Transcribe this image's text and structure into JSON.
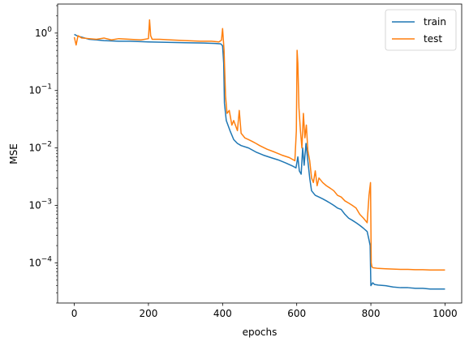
{
  "chart_data": {
    "type": "line",
    "xlabel": "epochs",
    "ylabel": "MSE",
    "xlim": [
      -45,
      1045
    ],
    "ylim": [
      2e-05,
      3.2
    ],
    "yscale": "log",
    "grid": false,
    "legend_position": "top-right",
    "x_ticks": [
      0,
      200,
      400,
      600,
      800,
      1000
    ],
    "x_tick_labels": [
      "0",
      "200",
      "400",
      "600",
      "800",
      "1000"
    ],
    "y_ticks": [
      0.0001,
      0.001,
      0.01,
      0.1,
      1
    ],
    "y_tick_labels": [
      {
        "base": "10",
        "exp": "−4"
      },
      {
        "base": "10",
        "exp": "−3"
      },
      {
        "base": "10",
        "exp": "−2"
      },
      {
        "base": "10",
        "exp": "−1"
      },
      {
        "base": "10",
        "exp": "0"
      }
    ],
    "series": [
      {
        "name": "train",
        "color": "#1f77b4",
        "x": [
          0,
          10,
          20,
          40,
          60,
          80,
          100,
          120,
          150,
          200,
          250,
          300,
          350,
          380,
          395,
          400,
          403,
          405,
          410,
          420,
          430,
          440,
          450,
          470,
          490,
          510,
          530,
          550,
          570,
          590,
          598,
          603,
          607,
          612,
          616,
          620,
          625,
          630,
          635,
          640,
          650,
          660,
          670,
          680,
          690,
          700,
          710,
          720,
          730,
          740,
          750,
          760,
          770,
          780,
          790,
          795,
          798,
          800,
          805,
          810,
          820,
          840,
          860,
          880,
          900,
          920,
          940,
          960,
          980,
          1000
        ],
        "y": [
          0.95,
          0.88,
          0.85,
          0.78,
          0.76,
          0.74,
          0.73,
          0.72,
          0.72,
          0.7,
          0.69,
          0.68,
          0.67,
          0.66,
          0.65,
          0.6,
          0.3,
          0.06,
          0.03,
          0.02,
          0.014,
          0.012,
          0.011,
          0.01,
          0.0085,
          0.0075,
          0.0068,
          0.0062,
          0.0055,
          0.0048,
          0.0045,
          0.007,
          0.004,
          0.0035,
          0.01,
          0.005,
          0.012,
          0.006,
          0.003,
          0.0018,
          0.0015,
          0.0014,
          0.0013,
          0.0012,
          0.0011,
          0.001,
          0.0009,
          0.00085,
          0.0007,
          0.0006,
          0.00055,
          0.0005,
          0.00045,
          0.0004,
          0.00035,
          0.00025,
          0.0002,
          4e-05,
          4.5e-05,
          4.2e-05,
          4.1e-05,
          4e-05,
          3.8e-05,
          3.7e-05,
          3.7e-05,
          3.6e-05,
          3.6e-05,
          3.5e-05,
          3.5e-05,
          3.5e-05
        ]
      },
      {
        "name": "test",
        "color": "#ff7f0e",
        "x": [
          0,
          5,
          10,
          20,
          40,
          60,
          80,
          100,
          120,
          150,
          180,
          200,
          203,
          206,
          210,
          230,
          260,
          300,
          340,
          370,
          390,
          397,
          400,
          404,
          408,
          412,
          418,
          425,
          430,
          440,
          445,
          450,
          460,
          470,
          480,
          490,
          500,
          520,
          540,
          560,
          580,
          595,
          599,
          601,
          603,
          606,
          610,
          614,
          618,
          622,
          626,
          630,
          635,
          640,
          645,
          650,
          655,
          660,
          670,
          680,
          690,
          700,
          710,
          720,
          730,
          740,
          750,
          760,
          770,
          780,
          790,
          795,
          799,
          801,
          803,
          806,
          820,
          840,
          860,
          880,
          900,
          920,
          940,
          960,
          980,
          1000
        ],
        "y": [
          0.85,
          0.62,
          0.9,
          0.82,
          0.8,
          0.78,
          0.82,
          0.76,
          0.8,
          0.78,
          0.76,
          0.8,
          1.7,
          0.9,
          0.78,
          0.78,
          0.76,
          0.74,
          0.72,
          0.72,
          0.7,
          0.75,
          1.2,
          0.5,
          0.08,
          0.04,
          0.045,
          0.025,
          0.03,
          0.02,
          0.045,
          0.018,
          0.015,
          0.014,
          0.013,
          0.012,
          0.011,
          0.0095,
          0.0085,
          0.0075,
          0.0068,
          0.006,
          0.02,
          0.5,
          0.3,
          0.05,
          0.02,
          0.01,
          0.04,
          0.015,
          0.025,
          0.009,
          0.006,
          0.003,
          0.0025,
          0.004,
          0.0022,
          0.003,
          0.0025,
          0.0022,
          0.002,
          0.0018,
          0.0015,
          0.0014,
          0.0012,
          0.0011,
          0.001,
          0.0009,
          0.0007,
          0.0006,
          0.0005,
          0.0015,
          0.0025,
          0.0001,
          8.5e-05,
          8.2e-05,
          8e-05,
          7.9e-05,
          7.8e-05,
          7.7e-05,
          7.7e-05,
          7.6e-05,
          7.6e-05,
          7.5e-05,
          7.5e-05,
          7.5e-05
        ]
      }
    ]
  }
}
